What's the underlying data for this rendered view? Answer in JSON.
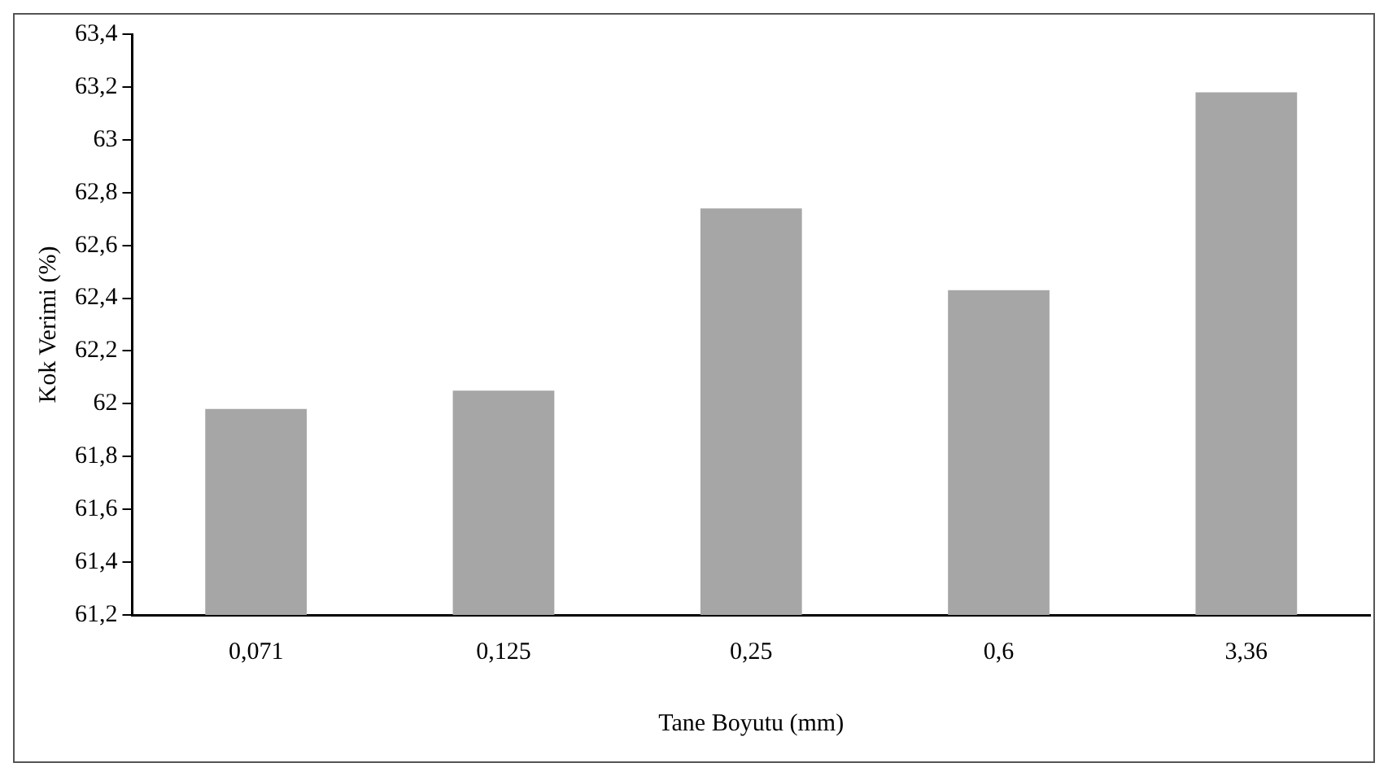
{
  "chart_data": {
    "type": "bar",
    "xlabel": "Tane Boyutu (mm)",
    "ylabel": "Kok Verimi (%)",
    "categories": [
      "0,071",
      "0,125",
      "0,25",
      "0,6",
      "3,36"
    ],
    "values": [
      61.98,
      62.05,
      62.74,
      62.43,
      63.18
    ],
    "color": "#a6a6a6",
    "ylim": [
      61.2,
      63.4
    ],
    "yticks": [
      {
        "value": 61.2,
        "label": "61,2"
      },
      {
        "value": 61.4,
        "label": "61,4"
      },
      {
        "value": 61.6,
        "label": "61,6"
      },
      {
        "value": 61.8,
        "label": "61,8"
      },
      62,
      {
        "value": 62.2,
        "label": "62,2"
      },
      {
        "value": 62.4,
        "label": "62,4"
      },
      {
        "value": 62.6,
        "label": "62,6"
      },
      {
        "value": 62.8,
        "label": "62,8"
      },
      63,
      {
        "value": 63.2,
        "label": "63,2"
      },
      {
        "value": 63.4,
        "label": "63,4"
      }
    ],
    "grid": false,
    "legend": false
  }
}
